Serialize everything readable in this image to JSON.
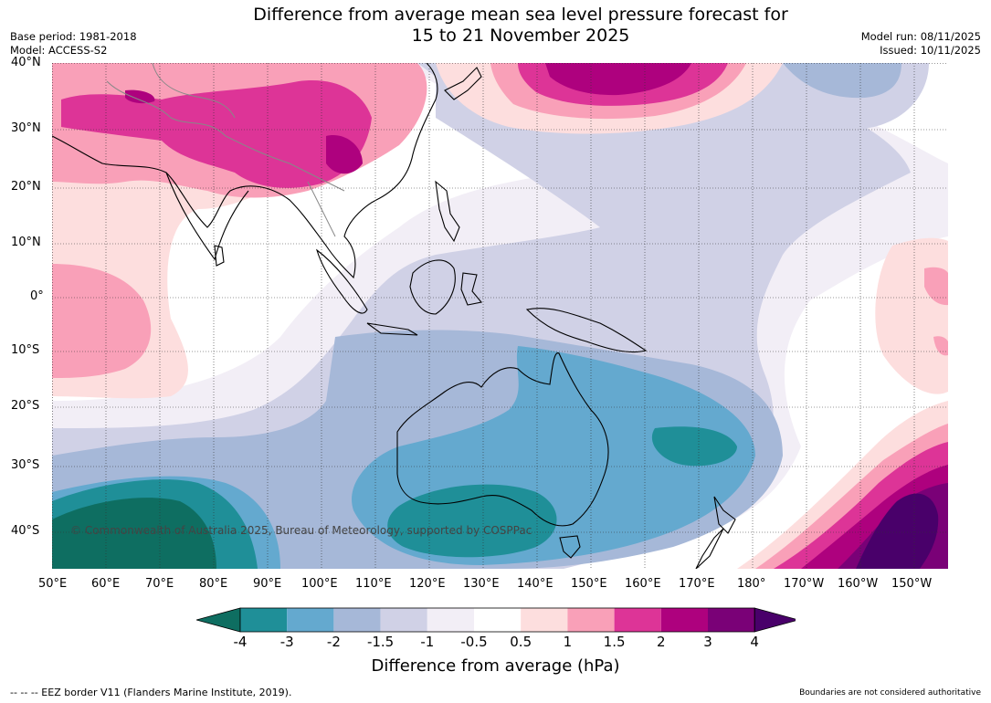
{
  "header": {
    "title_line1": "Difference from average mean sea level pressure forecast for",
    "title_line2": "15 to 21 November 2025",
    "base_period": "Base period: 1981-2018",
    "model": "Model: ACCESS-S2",
    "model_run": "Model run: 08/11/2025",
    "issued": "Issued: 10/11/2025"
  },
  "map": {
    "lat_labels": [
      "40°N",
      "30°N",
      "20°N",
      "10°N",
      "0°",
      "10°S",
      "20°S",
      "30°S",
      "40°S"
    ],
    "lon_labels": [
      "50°E",
      "60°E",
      "70°E",
      "80°E",
      "90°E",
      "100°E",
      "110°E",
      "120°E",
      "130°E",
      "140°E",
      "150°E",
      "160°E",
      "170°E",
      "180°",
      "170°W",
      "160°W",
      "150°W"
    ],
    "copyright": "© Commonwealth of Australia 2025, Bureau of Meteorology, supported by COSPPac"
  },
  "colorbar": {
    "ticks": [
      "-4",
      "-3",
      "-2",
      "-1.5",
      "-1",
      "-0.5",
      "0.5",
      "1",
      "1.5",
      "2",
      "3",
      "4"
    ],
    "colors": [
      "#0e6e61",
      "#1f8f98",
      "#64a9cf",
      "#a6b8d8",
      "#d0d1e6",
      "#f2eef6",
      "#ffffff",
      "#fddede",
      "#f9a0b8",
      "#dd3497",
      "#ae017e",
      "#7a0177",
      "#49006a"
    ],
    "label": "Difference from average (hPa)"
  },
  "footer": {
    "eez": "--  --  -- EEZ border V11 (Flanders Marine Institute, 2019).",
    "disclaimer": "Boundaries are not considered authoritative"
  }
}
